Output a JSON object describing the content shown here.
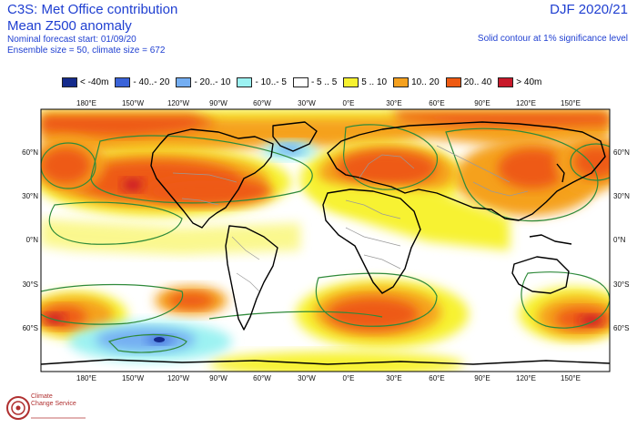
{
  "header": {
    "title_line1": "C3S: Met Office contribution",
    "title_line2": "Mean Z500 anomaly",
    "title_line3": "Nominal forecast start: 01/09/20",
    "title_line4": "Ensemble size = 50, climate size = 672",
    "season": "DJF 2020/21",
    "significance_note": "Solid contour at 1% significance level"
  },
  "legend": [
    {
      "label": "< -40m",
      "color": "#152b8c"
    },
    {
      "label": "- 40..- 20",
      "color": "#3a63d8"
    },
    {
      "label": "- 20..- 10",
      "color": "#74aef2"
    },
    {
      "label": "- 10..- 5",
      "color": "#9cf2f2"
    },
    {
      "label": "- 5 .. 5",
      "color": "#ffffff"
    },
    {
      "label": "5 .. 10",
      "color": "#f7f230"
    },
    {
      "label": "10.. 20",
      "color": "#f5a11f"
    },
    {
      "label": "20.. 40",
      "color": "#ee5a12"
    },
    {
      "label": "> 40m",
      "color": "#c8192a"
    }
  ],
  "map": {
    "lon_labels": [
      "180°E",
      "150°W",
      "120°W",
      "90°W",
      "60°W",
      "30°W",
      "0°E",
      "30°E",
      "60°E",
      "90°E",
      "120°E",
      "150°E"
    ],
    "lat_labels": [
      "60°N",
      "30°N",
      "0°N",
      "30°S",
      "60°S"
    ]
  },
  "logo": {
    "line1": "Climate",
    "line2": "Change Service"
  }
}
